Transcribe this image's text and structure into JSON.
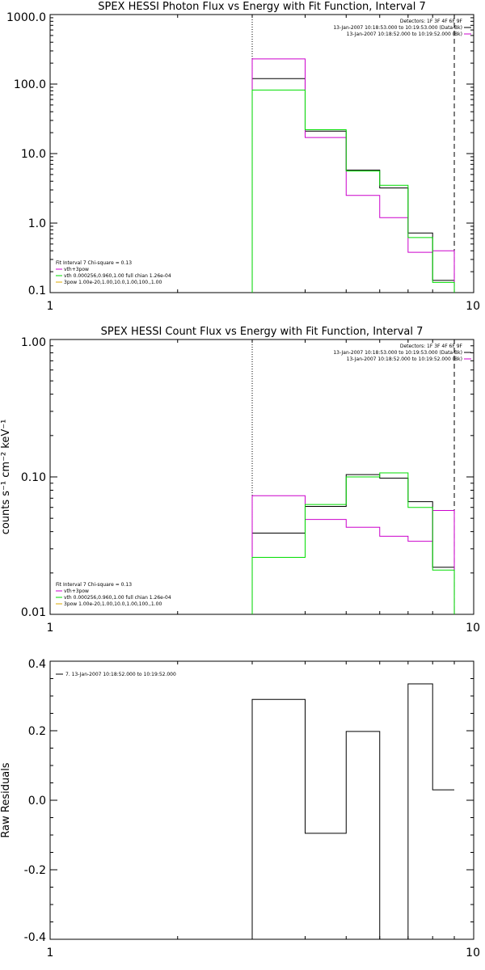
{
  "chart_data": [
    {
      "type": "step",
      "title": "SPEX HESSI Photon Flux vs Energy with Fit Function, Interval 7",
      "ylabel": "",
      "xscale": "log",
      "yscale": "log",
      "xlim": [
        1,
        10
      ],
      "ylim": [
        0.1,
        1000
      ],
      "xticks": [
        1,
        10
      ],
      "xtick_labels": [
        "1",
        "10"
      ],
      "yticks": [
        0.1,
        1,
        10,
        100,
        1000
      ],
      "ytick_labels": [
        "0.1",
        "1.0",
        "10.0",
        "100.0",
        "1000.0"
      ],
      "vlines": [
        {
          "x": 3,
          "style": "dotted"
        },
        {
          "x": 9,
          "style": "dashed"
        }
      ],
      "bin_edges": [
        3,
        4,
        5,
        6,
        7,
        8,
        9
      ],
      "series": [
        {
          "name": "",
          "color": "#000000",
          "values": [
            120,
            21,
            5.8,
            3.2,
            0.72,
            0.15
          ]
        },
        {
          "name": "",
          "color": "#cc00cc",
          "values": [
            230,
            17,
            2.5,
            1.2,
            0.38,
            0.4
          ]
        },
        {
          "name": "",
          "color": "#00dd00",
          "values": [
            82,
            22,
            5.6,
            3.5,
            0.62,
            0.14
          ]
        }
      ],
      "legend_right": [
        "Detectors: 1F 3F 4F 6F 9F",
        "13-Jan-2007 10:18:53.000 to 10:19:53.000 (Data-Bk)",
        "13-Jan-2007 10:18:52.000 to 10:19:52.000 (Bk)"
      ],
      "legend_right_colors": [
        "#000000",
        "#000000",
        "#cc00cc"
      ],
      "legend_left_title": "Fit Interval 7   Chi-square = 0.13",
      "legend_left": [
        "vth+3pow",
        "vth 0.000256,0.960,1.00  full chian 1.26e-04",
        "3pow 1.00e-20,1.00,10.0,1.00,100.,1.00"
      ],
      "legend_left_colors": [
        "#cc00cc",
        "#00dd00",
        "#ddaa00"
      ]
    },
    {
      "type": "step",
      "title": "SPEX HESSI Count Flux vs Energy with Fit Function, Interval 7",
      "ylabel": "counts s⁻¹ cm⁻² keV⁻¹",
      "xscale": "log",
      "yscale": "log",
      "xlim": [
        1,
        10
      ],
      "ylim": [
        0.01,
        1.0
      ],
      "xticks": [
        1,
        10
      ],
      "xtick_labels": [
        "1",
        "10"
      ],
      "yticks": [
        0.01,
        0.1,
        1.0
      ],
      "ytick_labels": [
        "0.01",
        "0.10",
        "1.00"
      ],
      "vlines": [
        {
          "x": 3,
          "style": "dotted"
        },
        {
          "x": 9,
          "style": "dashed"
        }
      ],
      "bin_edges": [
        3,
        4,
        5,
        6,
        7,
        8,
        9
      ],
      "series": [
        {
          "name": "",
          "color": "#000000",
          "values": [
            0.039,
            0.061,
            0.104,
            0.098,
            0.066,
            0.022
          ]
        },
        {
          "name": "",
          "color": "#cc00cc",
          "values": [
            0.073,
            0.049,
            0.043,
            0.037,
            0.034,
            0.057
          ]
        },
        {
          "name": "",
          "color": "#00dd00",
          "values": [
            0.026,
            0.063,
            0.1,
            0.107,
            0.06,
            0.021
          ]
        }
      ],
      "legend_right": [
        "Detectors: 1F 3F 4F 6F 9F",
        "13-Jan-2007 10:18:53.000 to 10:19:53.000 (Data-Bk)",
        "13-Jan-2007 10:18:52.000 to 10:19:52.000 (Bk)"
      ],
      "legend_right_colors": [
        "#000000",
        "#000000",
        "#cc00cc"
      ],
      "legend_left_title": "Fit Interval 7   Chi-square = 0.13",
      "legend_left": [
        "vth+3pow",
        "vth 0.000256,0.960,1.00  full chian 1.26e-04",
        "3pow 1.00e-20,1.00,10.0,1.00,100.,1.00"
      ],
      "legend_left_colors": [
        "#cc00cc",
        "#00dd00",
        "#ddaa00"
      ]
    },
    {
      "type": "step",
      "title": "",
      "ylabel": "Raw Residuals",
      "xscale": "log",
      "yscale": "linear",
      "xlim": [
        1,
        10
      ],
      "ylim": [
        -0.4,
        0.4
      ],
      "xticks": [
        1,
        10
      ],
      "xtick_labels": [
        "1",
        "10"
      ],
      "yticks": [
        -0.4,
        -0.2,
        0.0,
        0.2,
        0.4
      ],
      "ytick_labels": [
        "-0.4",
        "-0.2",
        "0.0",
        "0.2",
        "0.4"
      ],
      "bin_edges": [
        3,
        4,
        5,
        6,
        7,
        8,
        9
      ],
      "series": [
        {
          "name": "7. 13-Jan-2007 10:18:52.000 to 10:19:52.000",
          "color": "#000000",
          "values": [
            0.29,
            -0.095,
            0.198,
            -0.4,
            0.335,
            0.03
          ]
        }
      ],
      "legend_right": [],
      "legend_right_colors": [],
      "legend_left_title": "",
      "legend_left": [],
      "legend_left_colors": []
    }
  ]
}
